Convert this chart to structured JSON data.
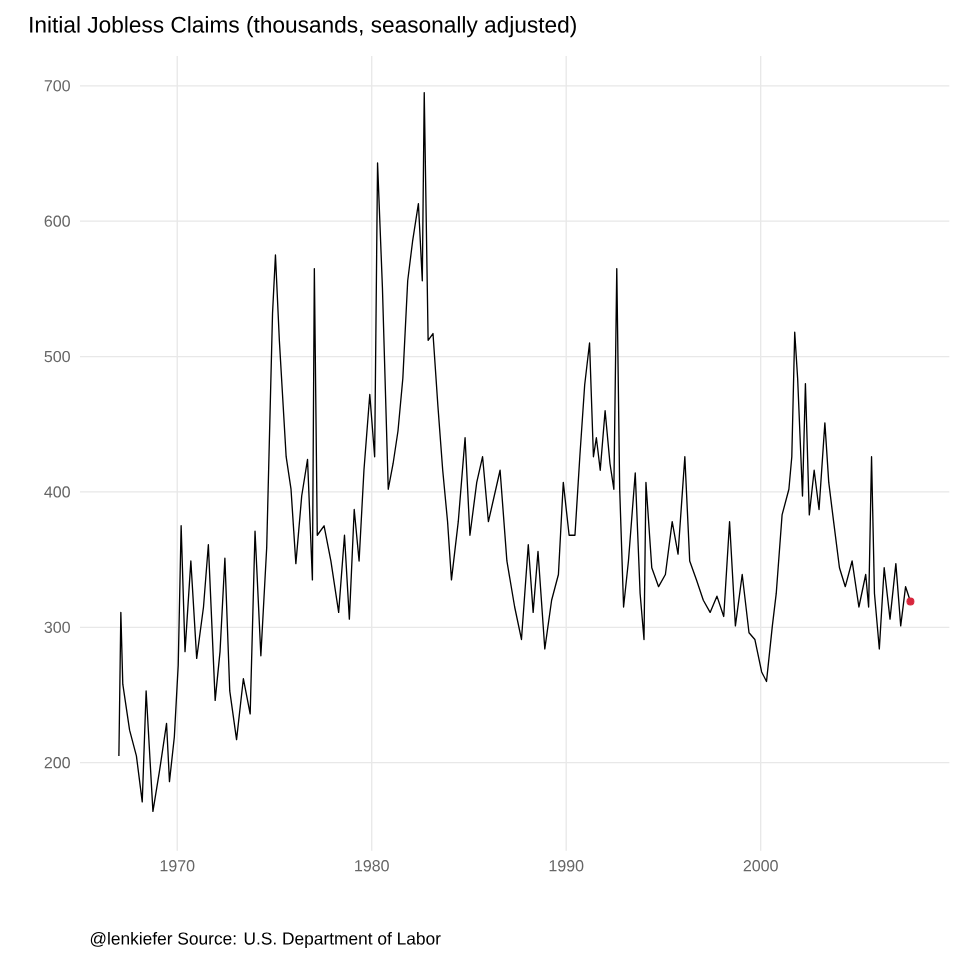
{
  "chart_data": {
    "type": "line",
    "title": "Initial Jobless Claims (thousands, seasonally adjusted)",
    "annotations": [
      "@lenkiefer Source: U.S. Department of Labor"
    ],
    "xlim": [
      1965,
      2009.7
    ],
    "ylim": [
      135,
      722
    ],
    "xticks": [
      1970,
      1980,
      1990,
      2000
    ],
    "yticks": [
      200,
      300,
      400,
      500,
      600,
      700
    ],
    "grid": true,
    "series": [
      {
        "color": "#000000",
        "x": [
          1967.0,
          1967.1,
          1967.2,
          1967.55,
          1967.9,
          1968.2,
          1968.4,
          1968.75,
          1969.1,
          1969.45,
          1969.6,
          1969.85,
          1970.05,
          1970.2,
          1970.4,
          1970.7,
          1971.0,
          1971.35,
          1971.6,
          1971.95,
          1972.2,
          1972.45,
          1972.7,
          1973.05,
          1973.4,
          1973.75,
          1974.0,
          1974.3,
          1974.6,
          1974.9,
          1975.05,
          1975.25,
          1975.6,
          1975.85,
          1976.1,
          1976.4,
          1976.7,
          1976.95,
          1977.05,
          1977.2,
          1977.55,
          1977.9,
          1978.3,
          1978.6,
          1978.85,
          1979.1,
          1979.35,
          1979.6,
          1979.9,
          1980.15,
          1980.3,
          1980.55,
          1980.85,
          1981.1,
          1981.35,
          1981.6,
          1981.85,
          1982.1,
          1982.4,
          1982.6,
          1982.7,
          1982.9,
          1983.15,
          1983.4,
          1983.65,
          1983.9,
          1984.1,
          1984.45,
          1984.8,
          1985.05,
          1985.4,
          1985.7,
          1986.0,
          1986.6,
          1986.95,
          1987.35,
          1987.7,
          1988.05,
          1988.3,
          1988.55,
          1988.9,
          1989.25,
          1989.6,
          1989.85,
          1990.15,
          1990.45,
          1990.7,
          1990.95,
          1991.2,
          1991.4,
          1991.55,
          1991.75,
          1992.0,
          1992.25,
          1992.45,
          1992.6,
          1992.75,
          1992.95,
          1993.2,
          1993.55,
          1993.8,
          1994.0,
          1994.1,
          1994.4,
          1994.75,
          1995.1,
          1995.45,
          1995.75,
          1996.1,
          1996.35,
          1996.7,
          1997.05,
          1997.4,
          1997.75,
          1998.1,
          1998.4,
          1998.7,
          1999.05,
          1999.4,
          1999.7,
          2000.05,
          2000.3,
          2000.6,
          2000.8,
          2001.1,
          2001.45,
          2001.6,
          2001.75,
          2001.9,
          2002.15,
          2002.3,
          2002.5,
          2002.75,
          2003.0,
          2003.3,
          2003.5,
          2003.75,
          2004.05,
          2004.35,
          2004.7,
          2005.05,
          2005.4,
          2005.55,
          2005.7,
          2005.85,
          2006.1,
          2006.35,
          2006.65,
          2006.95,
          2007.2,
          2007.45,
          2007.7
        ],
        "values": [
          205,
          311,
          258,
          224,
          205,
          171,
          253,
          164,
          195,
          229,
          186,
          219,
          272,
          375,
          282,
          349,
          277,
          315,
          361,
          246,
          282,
          351,
          253,
          217,
          262,
          236,
          371,
          279,
          359,
          532,
          575,
          512,
          426,
          402,
          347,
          397,
          424,
          335,
          565,
          368,
          375,
          349,
          311,
          368,
          306,
          387,
          349,
          416,
          472,
          426,
          643,
          551,
          402,
          421,
          445,
          484,
          556,
          585,
          613,
          556,
          695,
          512,
          517,
          464,
          416,
          378,
          335,
          378,
          440,
          368,
          407,
          426,
          378,
          416,
          349,
          315,
          291,
          361,
          311,
          356,
          284,
          320,
          339,
          407,
          368,
          368,
          426,
          479,
          510,
          426,
          440,
          416,
          460,
          421,
          402,
          565,
          402,
          315,
          349,
          414,
          325,
          291,
          407,
          344,
          330,
          339,
          378,
          354,
          426,
          349,
          335,
          320,
          311,
          323,
          308,
          378,
          301,
          339,
          296,
          291,
          267,
          260,
          301,
          325,
          383,
          402,
          426,
          518,
          484,
          397,
          480,
          383,
          416,
          387,
          451,
          407,
          378,
          344,
          330,
          349,
          315,
          339,
          315,
          426,
          325,
          284,
          344,
          306,
          347,
          301,
          330,
          319
        ]
      },
      {
        "type": "scatter",
        "color": "#d7263d",
        "x": [
          2007.7
        ],
        "values": [
          319
        ]
      }
    ]
  }
}
